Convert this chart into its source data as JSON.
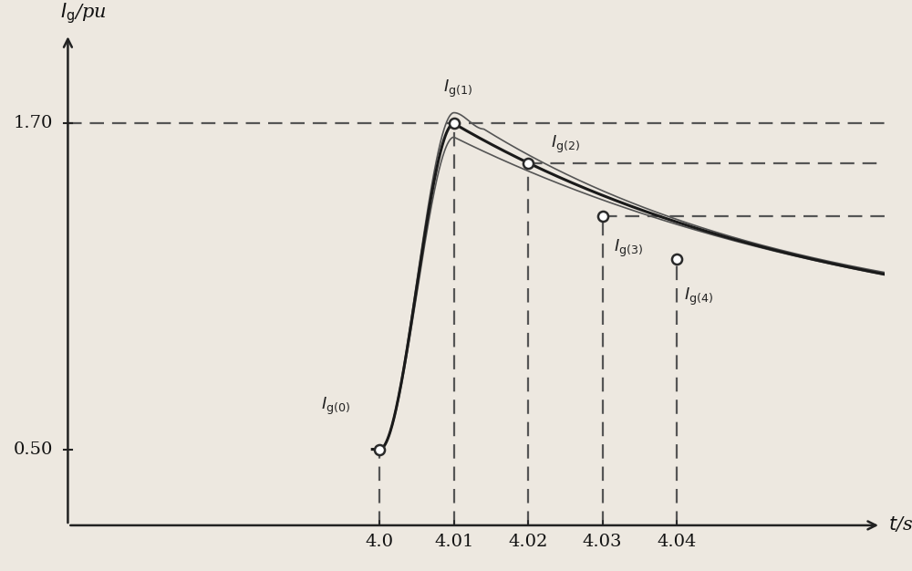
{
  "ylabel": "$I_{\\rm g}$/pu",
  "xlabel": "$t$/s",
  "xlim": [
    3.955,
    4.068
  ],
  "ylim": [
    0.22,
    2.05
  ],
  "y_axis_x": 3.958,
  "x_axis_y": 0.22,
  "y_ticks_vals": [
    0.5,
    1.7
  ],
  "y_ticks_labels": [
    "0.50",
    "1.70"
  ],
  "x_ticks": [
    4.0,
    4.01,
    4.02,
    4.03,
    4.04
  ],
  "x_ticks_labels": [
    "4.0",
    "4.01",
    "4.02",
    "4.03",
    "4.04"
  ],
  "key_points": {
    "t0": 4.0,
    "I0": 0.5,
    "t1": 4.01,
    "I1": 1.7,
    "t2": 4.02,
    "I2": 1.555,
    "t3": 4.03,
    "I3": 1.36,
    "t4": 4.04,
    "I4": 1.2
  },
  "line_color": "#3a3a3a",
  "thin_line_color": "#555555",
  "dashed_color": "#555555",
  "background_color": "#ede8e0",
  "axis_label_fontsize": 15,
  "tick_fontsize": 14,
  "curve_label_fontsize": 13
}
